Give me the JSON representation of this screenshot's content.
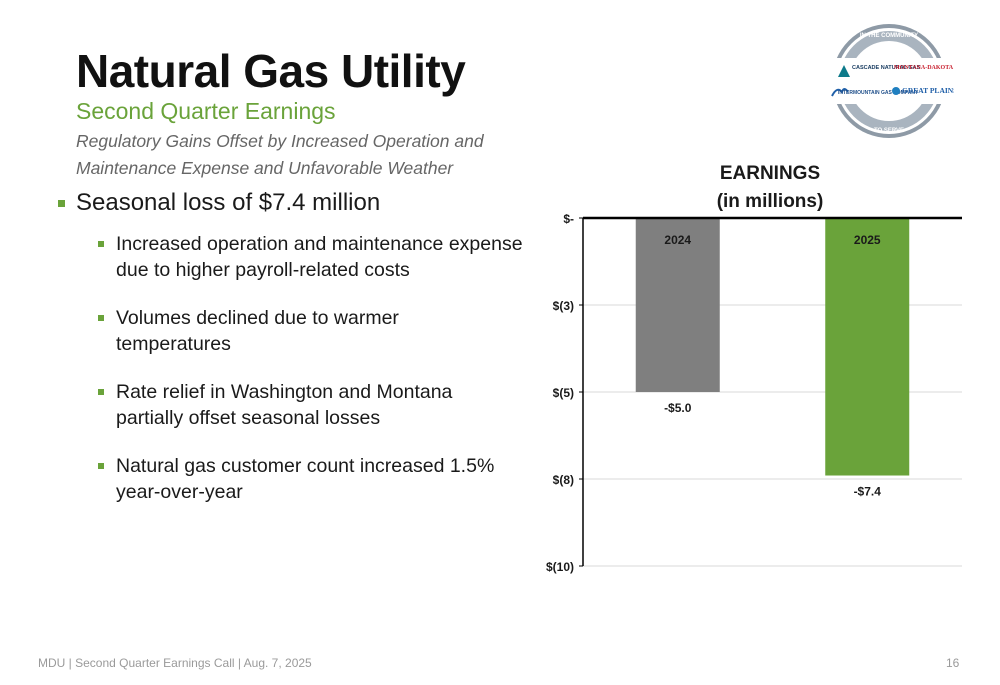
{
  "header": {
    "title": "Natural Gas Utility",
    "subtitle": "Second Quarter Earnings",
    "tagline_line1": "Regulatory Gains Offset by Increased Operation and",
    "tagline_line2": "Maintenance Expense and Unfavorable Weather"
  },
  "bullets": {
    "main": "Seasonal loss of $7.4 million",
    "sub": [
      {
        "line1": "Increased operation and maintenance expense",
        "line2": "due to higher payroll-related costs"
      },
      {
        "line1": "Volumes declined due to warmer",
        "line2": "temperatures"
      },
      {
        "line1": "Rate relief in Washington and Montana",
        "line2": "partially offset seasonal losses"
      },
      {
        "line1": "Natural gas customer count increased 1.5%",
        "line2": "year-over-year"
      }
    ]
  },
  "logo": {
    "ring_top": "IN THE COMMUNITY",
    "ring_bottom": "TO SERVE",
    "cascade": "CASCADE NATURAL GAS",
    "montana_dakota": "MONTANA-DAKOTA",
    "intermountain": "INTERMOUNTAIN GAS COMPANY",
    "great_plains": "GREAT PLAINS"
  },
  "chart_data": {
    "type": "bar",
    "title": "EARNINGS",
    "subtitle": "(in millions)",
    "categories": [
      "2024",
      "2025"
    ],
    "values": [
      -5.0,
      -7.4
    ],
    "value_labels": [
      "-$5.0",
      "-$7.4"
    ],
    "ylim": [
      -10,
      0
    ],
    "y_ticks": [
      0,
      -2.5,
      -5,
      -7.5,
      -10
    ],
    "y_tick_labels": [
      "$-",
      "$(3)",
      "$(5)",
      "$(8)",
      "$(10)"
    ],
    "colors": [
      "#7f7f7f",
      "#6aa33a"
    ],
    "grid": true
  },
  "footer": {
    "text": "MDU  |  Second Quarter Earnings Call  |  Aug. 7, 2025",
    "page": "16"
  }
}
